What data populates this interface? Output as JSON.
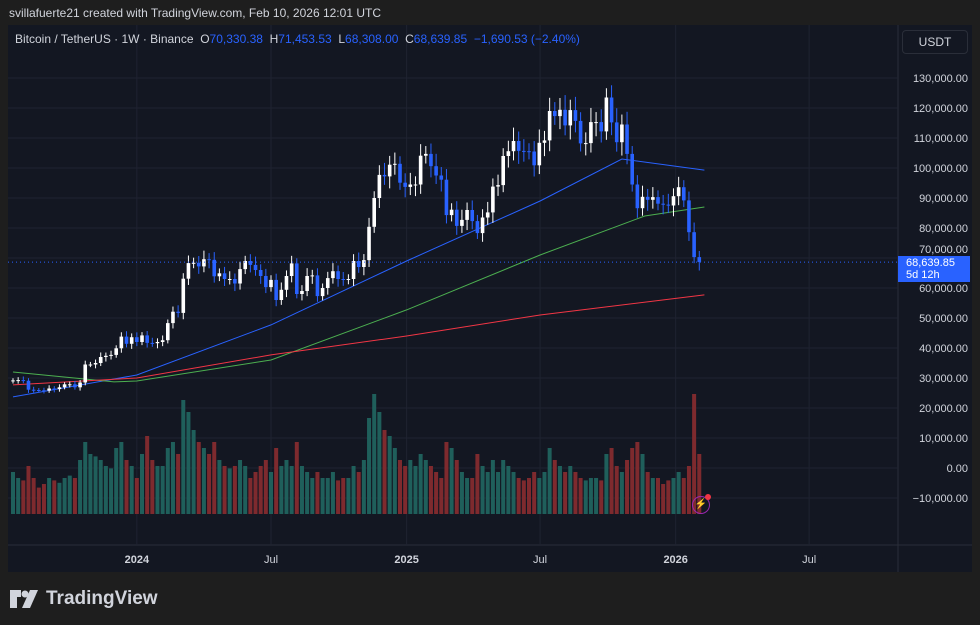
{
  "credit": "svillafuerte21 created with TradingView.com, Feb 10, 2026 12:01 UTC",
  "legend": {
    "symbol": "Bitcoin / TetherUS · 1W · Binance",
    "o_label": "O",
    "o": "70,330.38",
    "h_label": "H",
    "h": "71,453.53",
    "l_label": "L",
    "l": "68,308.00",
    "c_label": "C",
    "c": "68,639.85",
    "change": "−1,690.53 (−2.40%)"
  },
  "currency_button": "USDT",
  "price_label": {
    "price": "68,639.85",
    "countdown": "5d 12h"
  },
  "logo": "TradingView",
  "icons": {
    "alert": "lightning-icon",
    "logo": "tradingview-logo-icon"
  },
  "colors": {
    "up": "#ffffff",
    "down": "#2962ff",
    "vol_up": "#1f5f5b",
    "vol_down": "#7e2a2e",
    "ma_blue": "#2962ff",
    "ma_green": "#4caf50",
    "ma_red": "#f23645",
    "background": "#131722"
  },
  "chart_data": {
    "type": "candlestick",
    "interval": "1W",
    "start_week": "2023-07-17",
    "price_axis": {
      "ticks": [
        130000,
        120000,
        110000,
        100000,
        90000,
        80000,
        70000,
        60000,
        50000,
        40000,
        30000,
        20000,
        10000,
        0,
        -10000
      ],
      "tick_labels": [
        "130,000.00",
        "120,000.00",
        "110,000.00",
        "100,000.00",
        "90,000.00",
        "80,000.00",
        "70,000.00",
        "60,000.00",
        "50,000.00",
        "40,000.00",
        "30,000.00",
        "20,000.00",
        "10,000.00",
        "0.00",
        "−10,000.00"
      ]
    },
    "time_axis": {
      "labels": [
        {
          "text": "2024",
          "date": "2024-01-01"
        },
        {
          "text": "Jul",
          "date": "2024-07-01"
        },
        {
          "text": "2025",
          "date": "2025-01-01"
        },
        {
          "text": "Jul",
          "date": "2025-07-01"
        },
        {
          "text": "2026",
          "date": "2026-01-01"
        },
        {
          "text": "Jul",
          "date": "2026-07-01"
        }
      ]
    },
    "last_price": 68639.85,
    "closes": [
      29.2,
      29.3,
      29.1,
      26.1,
      26.0,
      25.9,
      25.8,
      26.5,
      26.3,
      26.9,
      27.9,
      27.9,
      26.9,
      28.5,
      34.5,
      34.5,
      35.0,
      37.0,
      37.4,
      37.7,
      39.9,
      43.8,
      41.4,
      43.6,
      42.0,
      44.2,
      41.7,
      41.6,
      42.0,
      42.6,
      48.3,
      52.1,
      51.7,
      63.1,
      68.3,
      68.4,
      67.2,
      69.6,
      69.4,
      63.9,
      64.9,
      63.0,
      63.0,
      61.5,
      66.3,
      69.0,
      67.7,
      66.0,
      64.0,
      60.3,
      62.7,
      56.0,
      59.4,
      64.0,
      68.2,
      58.0,
      59.0,
      64.0,
      64.2,
      57.3,
      60.0,
      63.3,
      65.6,
      63.0,
      62.8,
      63.0,
      69.0,
      67.0,
      69.3,
      80.4,
      90.0,
      97.7,
      97.2,
      101.1,
      101.4,
      95.1,
      93.7,
      94.5,
      94.5,
      104.1,
      104.7,
      100.6,
      97.5,
      96.1,
      84.3,
      86.1,
      80.7,
      82.7,
      86.0,
      82.3,
      78.3,
      83.5,
      85.2,
      93.8,
      94.3,
      104.0,
      105.6,
      109.0,
      105.7,
      105.6,
      105.5,
      100.9,
      108.4,
      109.2,
      119.0,
      117.3,
      119.4,
      114.2,
      119.3,
      115.7,
      108.2,
      108.3,
      115.3,
      115.3,
      112.2,
      123.5,
      115.2,
      108.6,
      114.5,
      104.7,
      94.5,
      86.6,
      90.4,
      89.4,
      90.3,
      88.1,
      87.8,
      87.5,
      90.6,
      93.6,
      89.2,
      78.6,
      70.3,
      68.64
    ],
    "closes_unit": "thousand USDT",
    "volumes_relative": [
      35,
      30,
      28,
      40,
      30,
      22,
      25,
      30,
      28,
      26,
      30,
      32,
      30,
      45,
      60,
      50,
      48,
      45,
      40,
      38,
      55,
      60,
      45,
      40,
      30,
      50,
      65,
      45,
      40,
      40,
      55,
      60,
      50,
      95,
      85,
      70,
      60,
      55,
      50,
      60,
      45,
      40,
      38,
      40,
      45,
      40,
      30,
      35,
      40,
      45,
      35,
      55,
      40,
      45,
      40,
      60,
      40,
      35,
      30,
      35,
      30,
      30,
      35,
      28,
      30,
      30,
      40,
      35,
      45,
      80,
      100,
      85,
      70,
      65,
      55,
      45,
      40,
      45,
      40,
      50,
      45,
      40,
      35,
      30,
      60,
      55,
      45,
      35,
      30,
      30,
      50,
      40,
      35,
      45,
      35,
      45,
      40,
      35,
      30,
      28,
      30,
      35,
      30,
      35,
      55,
      45,
      40,
      35,
      40,
      35,
      30,
      28,
      30,
      30,
      28,
      50,
      55,
      40,
      35,
      45,
      55,
      60,
      50,
      35,
      30,
      30,
      25,
      28,
      30,
      35,
      30,
      40,
      100,
      50
    ],
    "moving_averages": [
      {
        "color": "#2962ff",
        "points": [
          [
            "2023-07-17",
            23700
          ],
          [
            "2024-01-01",
            31000
          ],
          [
            "2024-07-01",
            47700
          ],
          [
            "2025-01-01",
            69000
          ],
          [
            "2025-07-01",
            89000
          ],
          [
            "2025-10-20",
            103000
          ],
          [
            "2026-02-09",
            99300
          ]
        ]
      },
      {
        "color": "#4caf50",
        "points": [
          [
            "2023-07-17",
            32000
          ],
          [
            "2023-12-01",
            28700
          ],
          [
            "2024-01-01",
            29000
          ],
          [
            "2024-07-01",
            36000
          ],
          [
            "2025-01-01",
            52700
          ],
          [
            "2025-07-01",
            71000
          ],
          [
            "2025-11-20",
            84000
          ],
          [
            "2026-02-09",
            87000
          ]
        ]
      },
      {
        "color": "#f23645",
        "points": [
          [
            "2023-07-17",
            27700
          ],
          [
            "2024-01-01",
            30000
          ],
          [
            "2024-07-01",
            37700
          ],
          [
            "2025-01-01",
            44000
          ],
          [
            "2025-07-01",
            51000
          ],
          [
            "2026-02-09",
            57700
          ]
        ]
      }
    ]
  }
}
